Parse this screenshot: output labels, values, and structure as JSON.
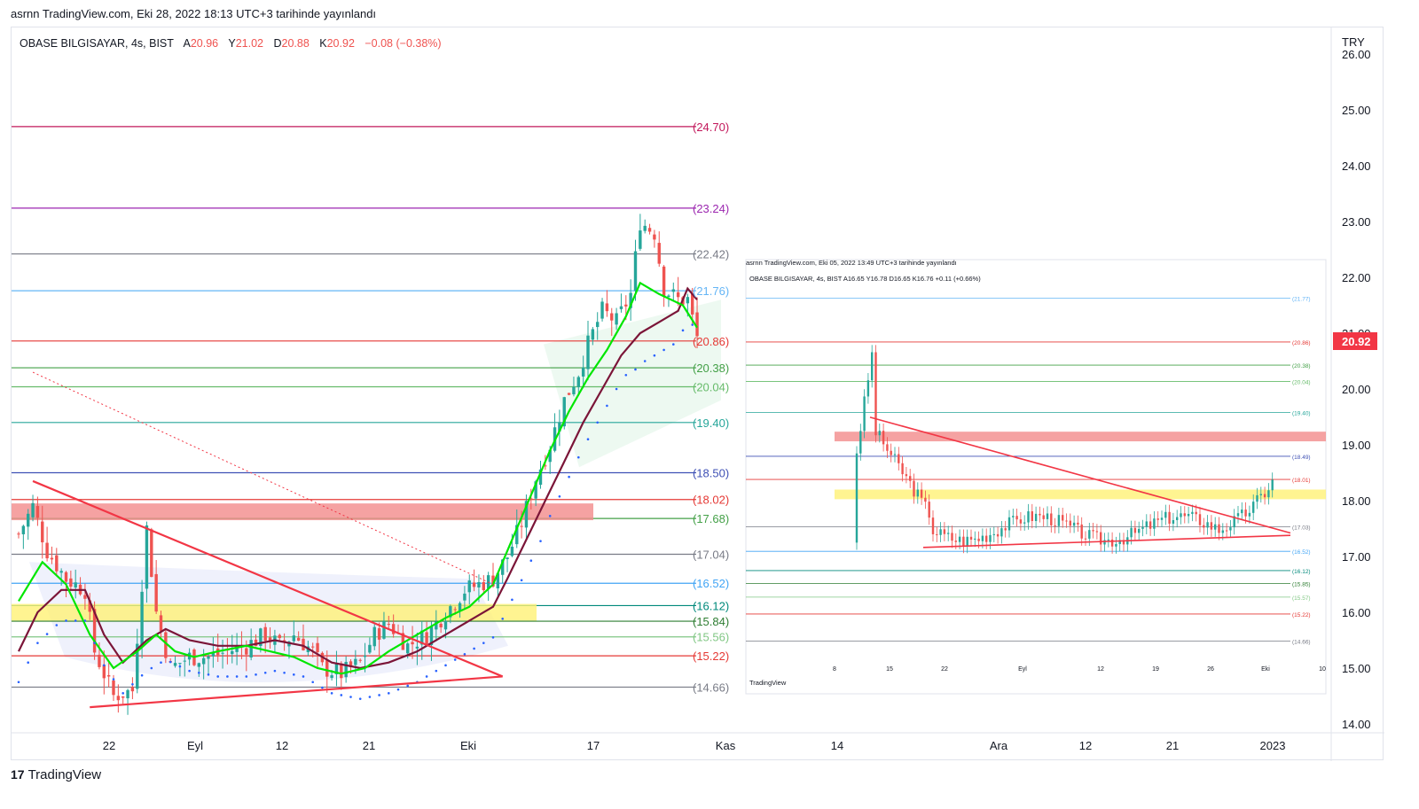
{
  "header": {
    "publish_line": "asrnn TradingView.com, Eki 28, 2022 18:13 UTC+3 tarihinde yayınlandı"
  },
  "symbol": {
    "name": "OBASE BILGISAYAR, 4s, BIST",
    "o_label": "A",
    "o": "20.96",
    "h_label": "Y",
    "h": "21.02",
    "l_label": "D",
    "l": "20.88",
    "c_label": "K",
    "c": "20.92",
    "change": "−0.08 (−0.38%)"
  },
  "currency": "TRY",
  "last_price": "20.92",
  "footer": {
    "logo_text": "TradingView"
  },
  "colors": {
    "up": "#26a69a",
    "down": "#ef5350",
    "ema_fast": "#00e600",
    "ema_slow": "#7b1538",
    "psar": "#2962ff",
    "trend": "#f23645",
    "yellow_band": "#fff176",
    "red_band": "#f28b8b"
  },
  "inset": {
    "header": "asrnn TradingView.com, Eki 05, 2022 13:49 UTC+3 tarihinde yayınlandı",
    "symbol_line": "OBASE BILGISAYAR, 4s, BIST",
    "ohlc": "A16.65 Y16.78 D16.65 K16.76 +0.11 (+0.66%)",
    "levels": [
      "21.77",
      "20.86",
      "20.38",
      "20.04",
      "19.40",
      "18.49",
      "18.01",
      "17.03",
      "16.52",
      "16.12",
      "15.85",
      "15.57",
      "15.22",
      "14.66"
    ],
    "x_labels": [
      "8",
      "15",
      "22",
      "Eyl",
      "12",
      "19",
      "26",
      "Eki",
      "10"
    ],
    "logo_text": "TradingView"
  },
  "chart_data": {
    "type": "candlestick",
    "y_axis": {
      "ylim": [
        14.0,
        26.0
      ],
      "ticks": [
        "14.00",
        "15.00",
        "16.00",
        "17.00",
        "18.00",
        "19.00",
        "20.00",
        "21.00",
        "22.00",
        "23.00",
        "24.00",
        "25.00",
        "26.00"
      ],
      "side": "right"
    },
    "x_axis": {
      "labels": [
        "22",
        "Eyl",
        "12",
        "21",
        "Eki",
        "17",
        "Kas",
        "14",
        "Ara",
        "12",
        "21",
        "2023"
      ]
    },
    "levels": [
      {
        "value": 24.7,
        "label": "(24.70)",
        "color": "#c2185b"
      },
      {
        "value": 23.24,
        "label": "(23.24)",
        "color": "#9c27b0"
      },
      {
        "value": 22.42,
        "label": "(22.42)",
        "color": "#787b86"
      },
      {
        "value": 21.76,
        "label": "(21.76)",
        "color": "#64b5f6"
      },
      {
        "value": 20.86,
        "label": "(20.86)",
        "color": "#e53935"
      },
      {
        "value": 20.38,
        "label": "(20.38)",
        "color": "#43a047"
      },
      {
        "value": 20.04,
        "label": "(20.04)",
        "color": "#66bb6a"
      },
      {
        "value": 19.4,
        "label": "(19.40)",
        "color": "#26a69a"
      },
      {
        "value": 18.5,
        "label": "(18.50)",
        "color": "#3f51b5"
      },
      {
        "value": 18.02,
        "label": "(18.02)",
        "color": "#e53935"
      },
      {
        "value": 17.68,
        "label": "(17.68)",
        "color": "#43a047"
      },
      {
        "value": 17.04,
        "label": "(17.04)",
        "color": "#787b86"
      },
      {
        "value": 16.52,
        "label": "(16.52)",
        "color": "#42a5f5"
      },
      {
        "value": 16.12,
        "label": "(16.12)",
        "color": "#00897b"
      },
      {
        "value": 15.84,
        "label": "(15.84)",
        "color": "#2e7d32"
      },
      {
        "value": 15.56,
        "label": "(15.56)",
        "color": "#81c784"
      },
      {
        "value": 15.22,
        "label": "(15.22)",
        "color": "#e53935"
      },
      {
        "value": 14.66,
        "label": "(14.66)",
        "color": "#787b86"
      }
    ],
    "zones": [
      {
        "name": "red-resistance-band",
        "from": 17.65,
        "to": 17.95
      },
      {
        "name": "yellow-support-band",
        "from": 15.85,
        "to": 16.15
      }
    ],
    "close_path": [
      [
        0,
        17.4
      ],
      [
        3,
        17.9
      ],
      [
        6,
        17.1
      ],
      [
        10,
        16.6
      ],
      [
        14,
        16.4
      ],
      [
        16,
        15.3
      ],
      [
        20,
        14.5
      ],
      [
        24,
        14.6
      ],
      [
        27,
        17.5
      ],
      [
        29,
        16.0
      ],
      [
        32,
        15.0
      ],
      [
        36,
        15.2
      ],
      [
        40,
        15.2
      ],
      [
        44,
        15.3
      ],
      [
        48,
        15.4
      ],
      [
        52,
        15.6
      ],
      [
        55,
        15.4
      ],
      [
        58,
        15.6
      ],
      [
        62,
        15.3
      ],
      [
        64,
        15.0
      ],
      [
        68,
        14.9
      ],
      [
        72,
        15.1
      ],
      [
        75,
        15.6
      ],
      [
        78,
        15.8
      ],
      [
        82,
        15.4
      ],
      [
        86,
        15.6
      ],
      [
        90,
        16.0
      ],
      [
        94,
        16.4
      ],
      [
        97,
        16.5
      ],
      [
        100,
        16.6
      ],
      [
        103,
        17.0
      ],
      [
        106,
        17.6
      ],
      [
        109,
        18.4
      ],
      [
        112,
        19.0
      ],
      [
        115,
        19.8
      ],
      [
        118,
        20.3
      ],
      [
        120,
        20.8
      ],
      [
        123,
        21.4
      ],
      [
        126,
        21.2
      ],
      [
        129,
        21.7
      ],
      [
        131,
        23.0
      ],
      [
        134,
        22.8
      ],
      [
        136,
        21.8
      ],
      [
        139,
        21.6
      ],
      [
        141,
        21.6
      ],
      [
        143,
        20.92
      ]
    ],
    "ema_fast_path": [
      [
        0,
        16.2
      ],
      [
        5,
        16.9
      ],
      [
        10,
        16.5
      ],
      [
        15,
        15.6
      ],
      [
        20,
        15.0
      ],
      [
        25,
        15.3
      ],
      [
        29,
        15.6
      ],
      [
        33,
        15.3
      ],
      [
        37,
        15.2
      ],
      [
        42,
        15.3
      ],
      [
        48,
        15.4
      ],
      [
        53,
        15.3
      ],
      [
        58,
        15.2
      ],
      [
        63,
        15.0
      ],
      [
        68,
        14.9
      ],
      [
        73,
        15.0
      ],
      [
        78,
        15.3
      ],
      [
        84,
        15.6
      ],
      [
        90,
        15.9
      ],
      [
        95,
        16.1
      ],
      [
        100,
        16.5
      ],
      [
        104,
        17.3
      ],
      [
        108,
        18.1
      ],
      [
        112,
        18.9
      ],
      [
        116,
        19.6
      ],
      [
        120,
        20.2
      ],
      [
        124,
        20.7
      ],
      [
        128,
        21.3
      ],
      [
        131,
        21.9
      ],
      [
        135,
        21.7
      ],
      [
        140,
        21.5
      ],
      [
        143,
        21.1
      ]
    ],
    "ema_slow_path": [
      [
        0,
        15.3
      ],
      [
        4,
        16.0
      ],
      [
        9,
        16.4
      ],
      [
        14,
        16.4
      ],
      [
        18,
        15.6
      ],
      [
        22,
        15.1
      ],
      [
        27,
        15.5
      ],
      [
        31,
        15.7
      ],
      [
        36,
        15.5
      ],
      [
        42,
        15.4
      ],
      [
        48,
        15.4
      ],
      [
        54,
        15.5
      ],
      [
        60,
        15.4
      ],
      [
        66,
        15.1
      ],
      [
        72,
        15.0
      ],
      [
        78,
        15.1
      ],
      [
        84,
        15.3
      ],
      [
        90,
        15.6
      ],
      [
        96,
        15.9
      ],
      [
        100,
        16.1
      ],
      [
        103,
        16.6
      ],
      [
        107,
        17.3
      ],
      [
        111,
        18.0
      ],
      [
        115,
        18.7
      ],
      [
        119,
        19.4
      ],
      [
        123,
        20.0
      ],
      [
        127,
        20.6
      ],
      [
        131,
        21.0
      ],
      [
        135,
        21.2
      ],
      [
        139,
        21.4
      ],
      [
        141,
        21.8
      ],
      [
        143,
        21.6
      ]
    ]
  }
}
